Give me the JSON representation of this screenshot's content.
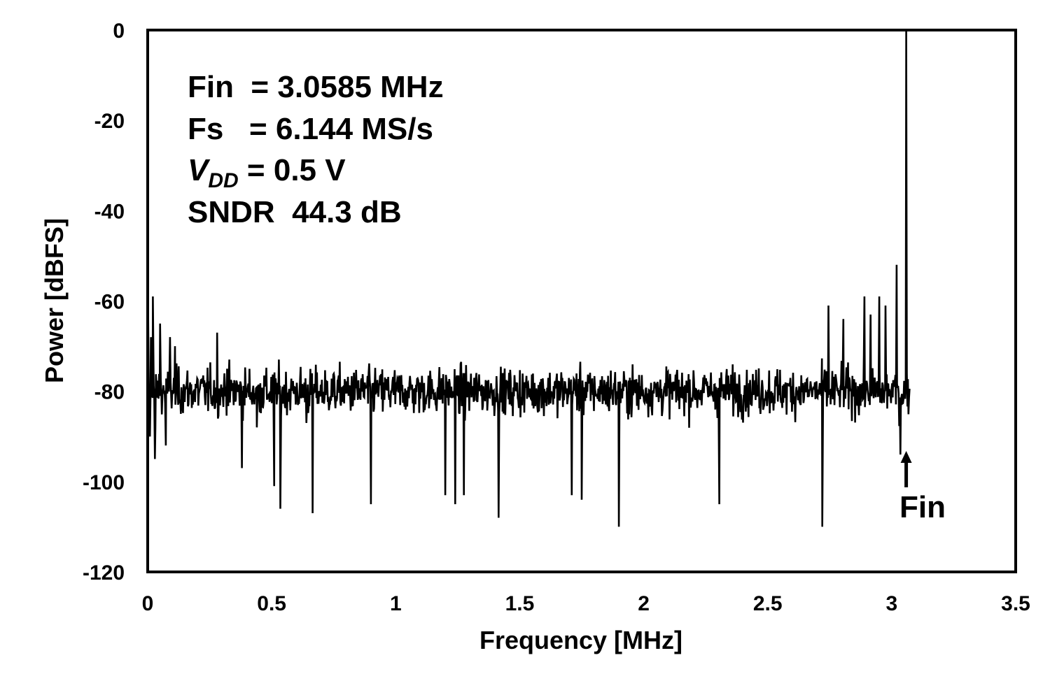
{
  "chart_data": {
    "type": "line",
    "title": "",
    "xlabel": "Frequency [MHz]",
    "ylabel": "Power [dBFS]",
    "xlim": [
      0,
      3.5
    ],
    "ylim": [
      -120,
      0
    ],
    "xticks": [
      "0",
      "0.5",
      "1",
      "1.5",
      "2",
      "2.5",
      "3",
      "3.5"
    ],
    "yticks": [
      "0",
      "-20",
      "-40",
      "-60",
      "-80",
      "-100",
      "-120"
    ],
    "grid": false,
    "legend": "none",
    "line_color": "#000000",
    "noise_floor_db": -80,
    "x_end": 3.072,
    "series": [
      {
        "x": [
          0.002,
          0.009,
          0.013,
          0.021,
          0.029,
          0.031,
          0.05,
          0.073,
          0.09,
          0.11,
          0.28,
          0.32,
          0.38,
          0.44,
          0.51,
          0.535,
          0.64,
          0.665,
          0.9,
          1.2,
          1.24,
          1.275,
          1.415,
          1.71,
          1.75,
          1.9,
          2.305,
          2.72,
          2.745,
          2.805,
          2.89,
          2.915,
          2.95,
          2.975,
          3.02,
          3.035,
          3.0585
        ],
        "y": [
          -64,
          -90,
          -68,
          -59,
          -95,
          -88,
          -65,
          -92,
          -68,
          -70,
          -67,
          -75,
          -97,
          -88,
          -101,
          -106,
          -87,
          -107,
          -105,
          -103,
          -105,
          -103,
          -108,
          -103,
          -104,
          -110,
          -105,
          -110,
          -61,
          -64,
          -59,
          -63,
          -59,
          -61,
          -52,
          -94,
          0
        ]
      }
    ],
    "annotations": {
      "fin_label": "Fin  = 3.0585 MHz",
      "fs_label": "Fs   = 6.144 MS/s",
      "vdd_main": "V",
      "vdd_sub": "DD",
      "vdd_value": " = 0.5 V",
      "sndr_label": "SNDR  44.3 dB",
      "arrow_label": "Fin",
      "arrow_x": 3.0585
    }
  }
}
